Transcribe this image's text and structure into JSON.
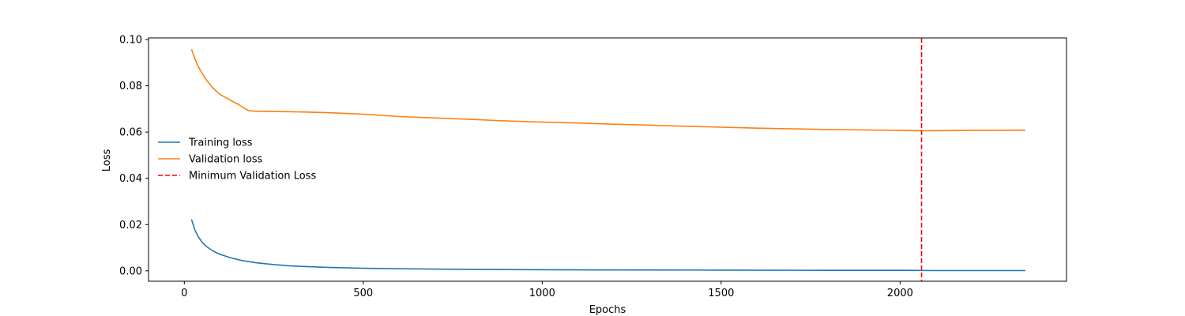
{
  "chart_data": {
    "type": "line",
    "xlabel": "Epochs",
    "ylabel": "Loss",
    "xlim": [
      -100,
      2465
    ],
    "ylim": [
      -0.0045,
      0.1007
    ],
    "xticks": [
      0,
      500,
      1000,
      1500,
      2000
    ],
    "yticks": [
      0.0,
      0.02,
      0.04,
      0.06,
      0.08,
      0.1
    ],
    "ytick_labels": [
      "0.00",
      "0.02",
      "0.04",
      "0.06",
      "0.08",
      "0.10"
    ],
    "xtick_labels": [
      "0",
      "500",
      "1000",
      "1500",
      "2000"
    ],
    "legend_position": "center-left",
    "grid": false,
    "series": [
      {
        "name": "Training loss",
        "color": "#1f77b4",
        "style": "solid",
        "x": [
          20,
          30,
          40,
          50,
          60,
          80,
          100,
          130,
          160,
          200,
          250,
          300,
          400,
          500,
          600,
          800,
          1000,
          1200,
          1500,
          1800,
          2000,
          2100,
          2200,
          2350
        ],
        "y": [
          0.0222,
          0.0175,
          0.0145,
          0.0123,
          0.0107,
          0.0086,
          0.0071,
          0.0056,
          0.0045,
          0.0035,
          0.0027,
          0.0021,
          0.0015,
          0.0011,
          0.0009,
          0.0006,
          0.0005,
          0.0004,
          0.0003,
          0.0002,
          0.0002,
          0.0001,
          0.0001,
          0.0001
        ]
      },
      {
        "name": "Validation loss",
        "color": "#ff7f0e",
        "style": "solid",
        "x": [
          20,
          30,
          40,
          60,
          80,
          100,
          120,
          150,
          180,
          200,
          300,
          400,
          500,
          600,
          700,
          800,
          900,
          1000,
          1100,
          1200,
          1300,
          1400,
          1500,
          1600,
          1700,
          1800,
          1900,
          2000,
          2060,
          2100,
          2200,
          2350
        ],
        "y": [
          0.0958,
          0.0915,
          0.088,
          0.0828,
          0.079,
          0.0762,
          0.0745,
          0.072,
          0.0692,
          0.069,
          0.0688,
          0.0684,
          0.0677,
          0.0667,
          0.0661,
          0.0655,
          0.0648,
          0.0643,
          0.0639,
          0.0634,
          0.063,
          0.0625,
          0.0621,
          0.0617,
          0.0614,
          0.0611,
          0.0609,
          0.0607,
          0.0606,
          0.0606,
          0.0607,
          0.0608
        ]
      }
    ],
    "vlines": [
      {
        "name": "Minimum Validation Loss",
        "x": 2060,
        "color": "#ff0000",
        "style": "dashed"
      }
    ]
  }
}
